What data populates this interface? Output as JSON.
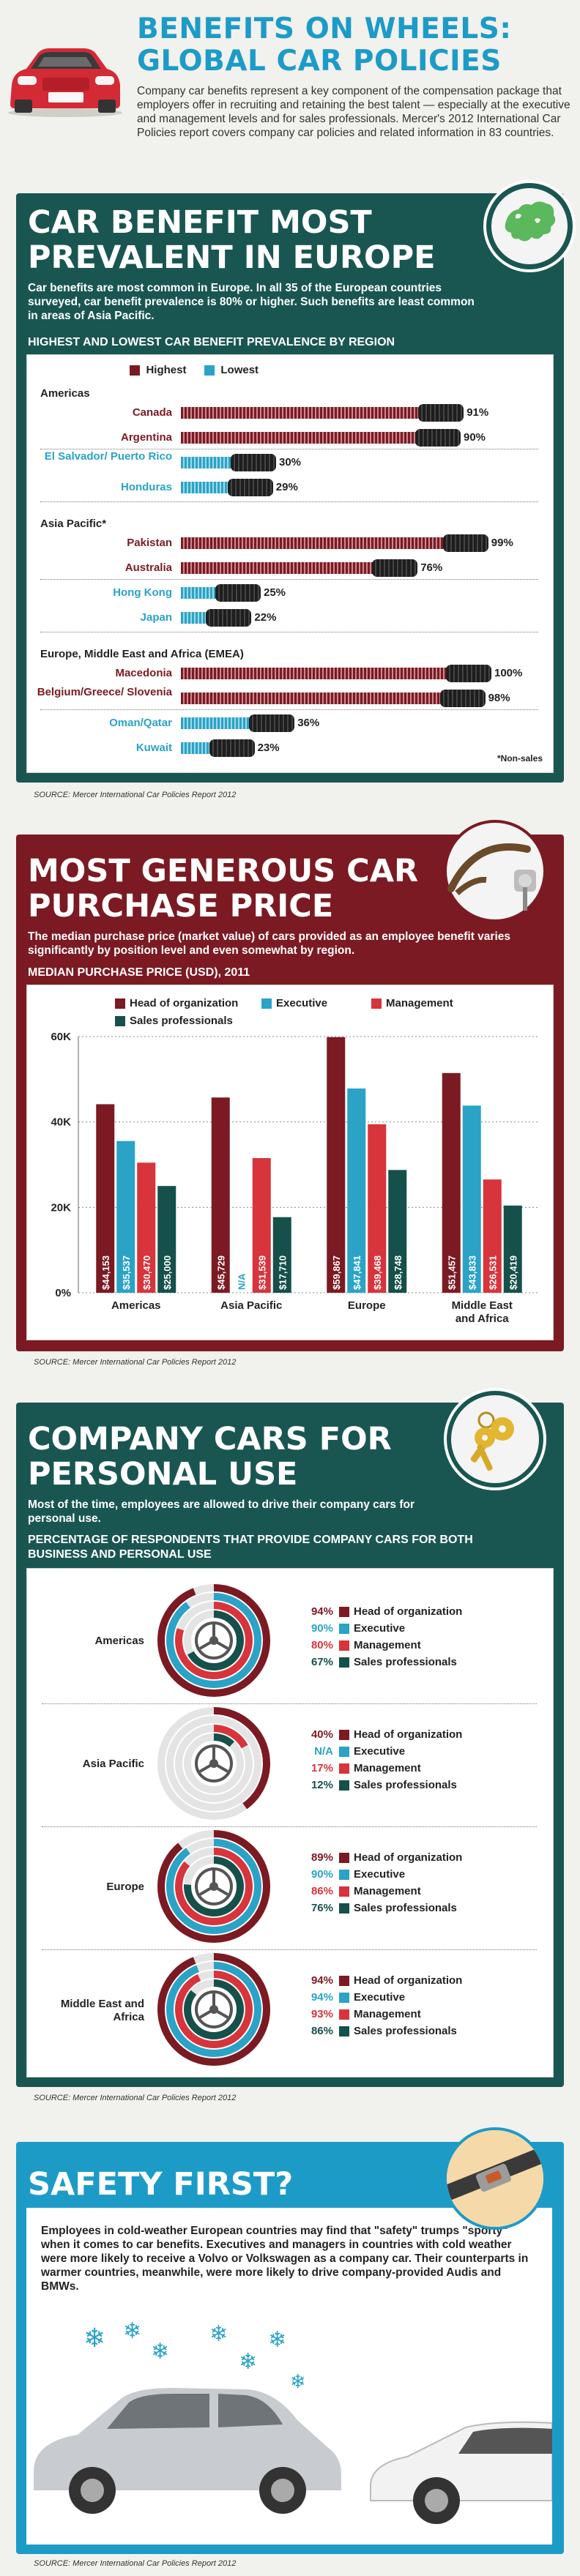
{
  "header": {
    "title_line1": "BENEFITS ON WHEELS:",
    "title_line2": "GLOBAL CAR POLICIES",
    "intro": "Company car benefits represent a key component of the compensation package that employers offer in recruiting and retaining the best talent — especially at the executive and management levels and for sales professionals. Mercer's 2012 International Car Policies report covers company car policies and related information in 83 countries."
  },
  "colors": {
    "teal": "#1a5651",
    "maroon": "#7b1a22",
    "cyan": "#2aa3c7",
    "red": "#d7343c",
    "dark_teal": "#16504a",
    "sky": "#2f9fc0"
  },
  "section1": {
    "title_line1": "CAR BENEFIT MOST",
    "title_line2": "PREVALENT IN EUROPE",
    "intro": "Car benefits are most common in Europe. In all 35 of the European countries surveyed, car benefit prevalence is 80% or higher. Such benefits are least common in areas of Asia Pacific.",
    "subhead": "HIGHEST AND LOWEST CAR BENEFIT PREVALENCE BY REGION",
    "legend_highest": "Highest",
    "legend_lowest": "Lowest",
    "note": "*Non-sales",
    "source": "SOURCE: Mercer International Car Policies Report 2012"
  },
  "section2": {
    "title_line1": "MOST GENEROUS CAR",
    "title_line2": "PURCHASE PRICE",
    "intro": "The median purchase price (market value) of cars provided as an employee benefit varies significantly by position level and even somewhat by region.",
    "subhead": "MEDIAN PURCHASE PRICE (USD), 2011",
    "source": "SOURCE: Mercer International Car Policies Report 2012"
  },
  "section3": {
    "title_line1": "COMPANY CARS FOR",
    "title_line2": "PERSONAL USE",
    "intro": "Most of the time, employees are allowed to drive their company cars for personal use.",
    "subhead_line1": "PERCENTAGE OF RESPONDENTS THAT PROVIDE COMPANY CARS FOR BOTH",
    "subhead_line2": "BUSINESS AND PERSONAL USE",
    "source": "SOURCE: Mercer International Car Policies Report 2012"
  },
  "section4": {
    "title": "SAFETY FIRST?",
    "body": "Employees in cold-weather European countries may find that \"safety\" trumps \"sporty\" when it comes to car benefits. Executives and managers in countries with cold weather were more likely to receive a Volvo or Volkswagen as a company car. Their counterparts in warmer countries, meanwhile, were more likely to drive company-provided Audis and BMWs.",
    "source": "SOURCE: Mercer International Car Policies Report 2012"
  },
  "chart_data": [
    {
      "type": "bar",
      "orientation": "horizontal",
      "title": "HIGHEST AND LOWEST CAR BENEFIT PREVALENCE BY REGION",
      "xlim": [
        0,
        100
      ],
      "series_names": [
        "Highest",
        "Lowest"
      ],
      "groups": [
        {
          "region": "Americas",
          "rows": [
            {
              "label": "Canada",
              "value": 91,
              "label_text": "91%",
              "series": "Highest"
            },
            {
              "label": "Argentina",
              "value": 90,
              "label_text": "90%",
              "series": "Highest"
            },
            {
              "label": "El Salvador/ Puerto Rico",
              "value": 30,
              "label_text": "30%",
              "series": "Lowest"
            },
            {
              "label": "Honduras",
              "value": 29,
              "label_text": "29%",
              "series": "Lowest"
            }
          ]
        },
        {
          "region": "Asia Pacific*",
          "rows": [
            {
              "label": "Pakistan",
              "value": 99,
              "label_text": "99%",
              "series": "Highest"
            },
            {
              "label": "Australia",
              "value": 76,
              "label_text": "76%",
              "series": "Highest"
            },
            {
              "label": "Hong Kong",
              "value": 25,
              "label_text": "25%",
              "series": "Lowest"
            },
            {
              "label": "Japan",
              "value": 22,
              "label_text": "22%",
              "series": "Lowest"
            }
          ]
        },
        {
          "region": "Europe, Middle East and Africa (EMEA)",
          "rows": [
            {
              "label": "Macedonia",
              "value": 100,
              "label_text": "100%",
              "series": "Highest"
            },
            {
              "label": "Belgium/Greece/ Slovenia",
              "value": 98,
              "label_text": "98%",
              "series": "Highest"
            },
            {
              "label": "Oman/Qatar",
              "value": 36,
              "label_text": "36%",
              "series": "Lowest"
            },
            {
              "label": "Kuwait",
              "value": 23,
              "label_text": "23%",
              "series": "Lowest"
            }
          ]
        }
      ]
    },
    {
      "type": "bar",
      "orientation": "vertical",
      "title": "MEDIAN PURCHASE PRICE (USD), 2011",
      "ylim": [
        0,
        60000
      ],
      "yticks": [
        0,
        20000,
        40000,
        60000
      ],
      "ytick_labels": [
        "0%",
        "20K",
        "40K",
        "60K"
      ],
      "categories": [
        "Americas",
        "Asia Pacific",
        "Europe",
        "Middle East and Africa"
      ],
      "series": [
        {
          "name": "Head of organization",
          "color": "#7b1a22",
          "values": [
            44153,
            45729,
            59867,
            51457
          ],
          "labels": [
            "$44,153",
            "$45,729",
            "$59,867",
            "$51,457"
          ]
        },
        {
          "name": "Executive",
          "color": "#2aa3c7",
          "values": [
            35537,
            null,
            47841,
            43833
          ],
          "labels": [
            "$35,537",
            "N/A",
            "$47,841",
            "$43,833"
          ]
        },
        {
          "name": "Management",
          "color": "#d7343c",
          "values": [
            30470,
            31539,
            39468,
            26531
          ],
          "labels": [
            "$30,470",
            "$31,539",
            "$39,468",
            "$26,531"
          ]
        },
        {
          "name": "Sales professionals",
          "color": "#16504a",
          "values": [
            25000,
            17710,
            28748,
            20419
          ],
          "labels": [
            "$25,000",
            "$17,710",
            "$28,748",
            "$20,419"
          ]
        }
      ]
    },
    {
      "type": "pie",
      "subtype": "concentric-rings",
      "title": "PERCENTAGE OF RESPONDENTS THAT PROVIDE COMPANY CARS FOR BOTH BUSINESS AND PERSONAL USE",
      "series_names": [
        "Head of organization",
        "Executive",
        "Management",
        "Sales professionals"
      ],
      "regions": [
        {
          "name": "Americas",
          "values": [
            94,
            90,
            80,
            67
          ],
          "labels": [
            "94%",
            "90%",
            "80%",
            "67%"
          ]
        },
        {
          "name": "Asia Pacific",
          "values": [
            40,
            null,
            17,
            12
          ],
          "labels": [
            "40%",
            "N/A",
            "17%",
            "12%"
          ]
        },
        {
          "name": "Europe",
          "values": [
            89,
            90,
            86,
            76
          ],
          "labels": [
            "89%",
            "90%",
            "86%",
            "76%"
          ]
        },
        {
          "name": "Middle East and Africa",
          "values": [
            94,
            94,
            93,
            86
          ],
          "labels": [
            "94%",
            "94%",
            "93%",
            "86%"
          ]
        }
      ]
    }
  ]
}
